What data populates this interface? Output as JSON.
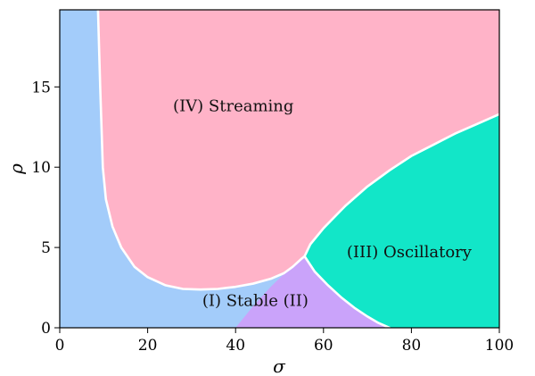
{
  "chart_data": {
    "type": "area",
    "title": "",
    "xlabel": "σ",
    "ylabel": "ρ",
    "xlim": [
      0,
      100
    ],
    "ylim": [
      0,
      19.8
    ],
    "xticks": [
      0,
      20,
      40,
      60,
      80,
      100
    ],
    "yticks": [
      0,
      5,
      10,
      15
    ],
    "grid": false,
    "colors": {
      "stable": "#a3ccfa",
      "ii": "#caa3fa",
      "oscillatory": "#12e6c8",
      "streaming": "#ffb3c8",
      "boundary": "#ffffff"
    },
    "regions": [
      {
        "id": "stable",
        "label": "(I) Stable",
        "color": "#a3ccfa"
      },
      {
        "id": "ii",
        "label": "(II)",
        "color": "#caa3fa"
      },
      {
        "id": "oscillatory",
        "label": "(III) Oscillatory",
        "color": "#12e6c8"
      },
      {
        "id": "streaming",
        "label": "(IV) Streaming",
        "color": "#ffb3c8"
      }
    ],
    "labels": [
      {
        "text": "(IV) Streaming",
        "x": 39.5,
        "y": 13.5
      },
      {
        "text": "(III) Oscillatory",
        "x": 79.5,
        "y": 4.4
      },
      {
        "text": "(I) Stable (II)",
        "x": 44.5,
        "y": 1.35
      }
    ],
    "boundaries": {
      "streaming": [
        [
          8.7,
          19.8
        ],
        [
          9.2,
          15
        ],
        [
          9.8,
          10
        ],
        [
          10.5,
          8
        ],
        [
          12,
          6.3
        ],
        [
          14,
          5
        ],
        [
          17,
          3.8
        ],
        [
          20,
          3.15
        ],
        [
          24,
          2.65
        ],
        [
          28,
          2.42
        ],
        [
          32,
          2.38
        ],
        [
          36,
          2.42
        ],
        [
          40,
          2.55
        ],
        [
          44,
          2.75
        ],
        [
          48,
          3.05
        ],
        [
          51,
          3.4
        ],
        [
          53,
          3.8
        ],
        [
          55,
          4.3
        ],
        [
          55.7,
          4.45
        ]
      ],
      "oscillatory": [
        [
          55.7,
          4.45
        ],
        [
          57,
          5.2
        ],
        [
          60,
          6.2
        ],
        [
          65,
          7.6
        ],
        [
          70,
          8.8
        ],
        [
          75,
          9.8
        ],
        [
          80,
          10.7
        ],
        [
          85,
          11.4
        ],
        [
          90,
          12.1
        ],
        [
          95,
          12.7
        ],
        [
          100,
          13.3
        ]
      ],
      "lower_ii": [
        [
          55.7,
          4.45
        ],
        [
          58,
          3.5
        ],
        [
          61,
          2.65
        ],
        [
          64,
          1.9
        ],
        [
          67,
          1.25
        ],
        [
          70,
          0.7
        ],
        [
          72.5,
          0.3
        ],
        [
          75,
          0
        ]
      ],
      "left_ii": [
        [
          40,
          0
        ],
        [
          44,
          1.35
        ],
        [
          48,
          2.55
        ],
        [
          51,
          3.35
        ],
        [
          53,
          3.85
        ],
        [
          55.7,
          4.45
        ]
      ]
    }
  }
}
